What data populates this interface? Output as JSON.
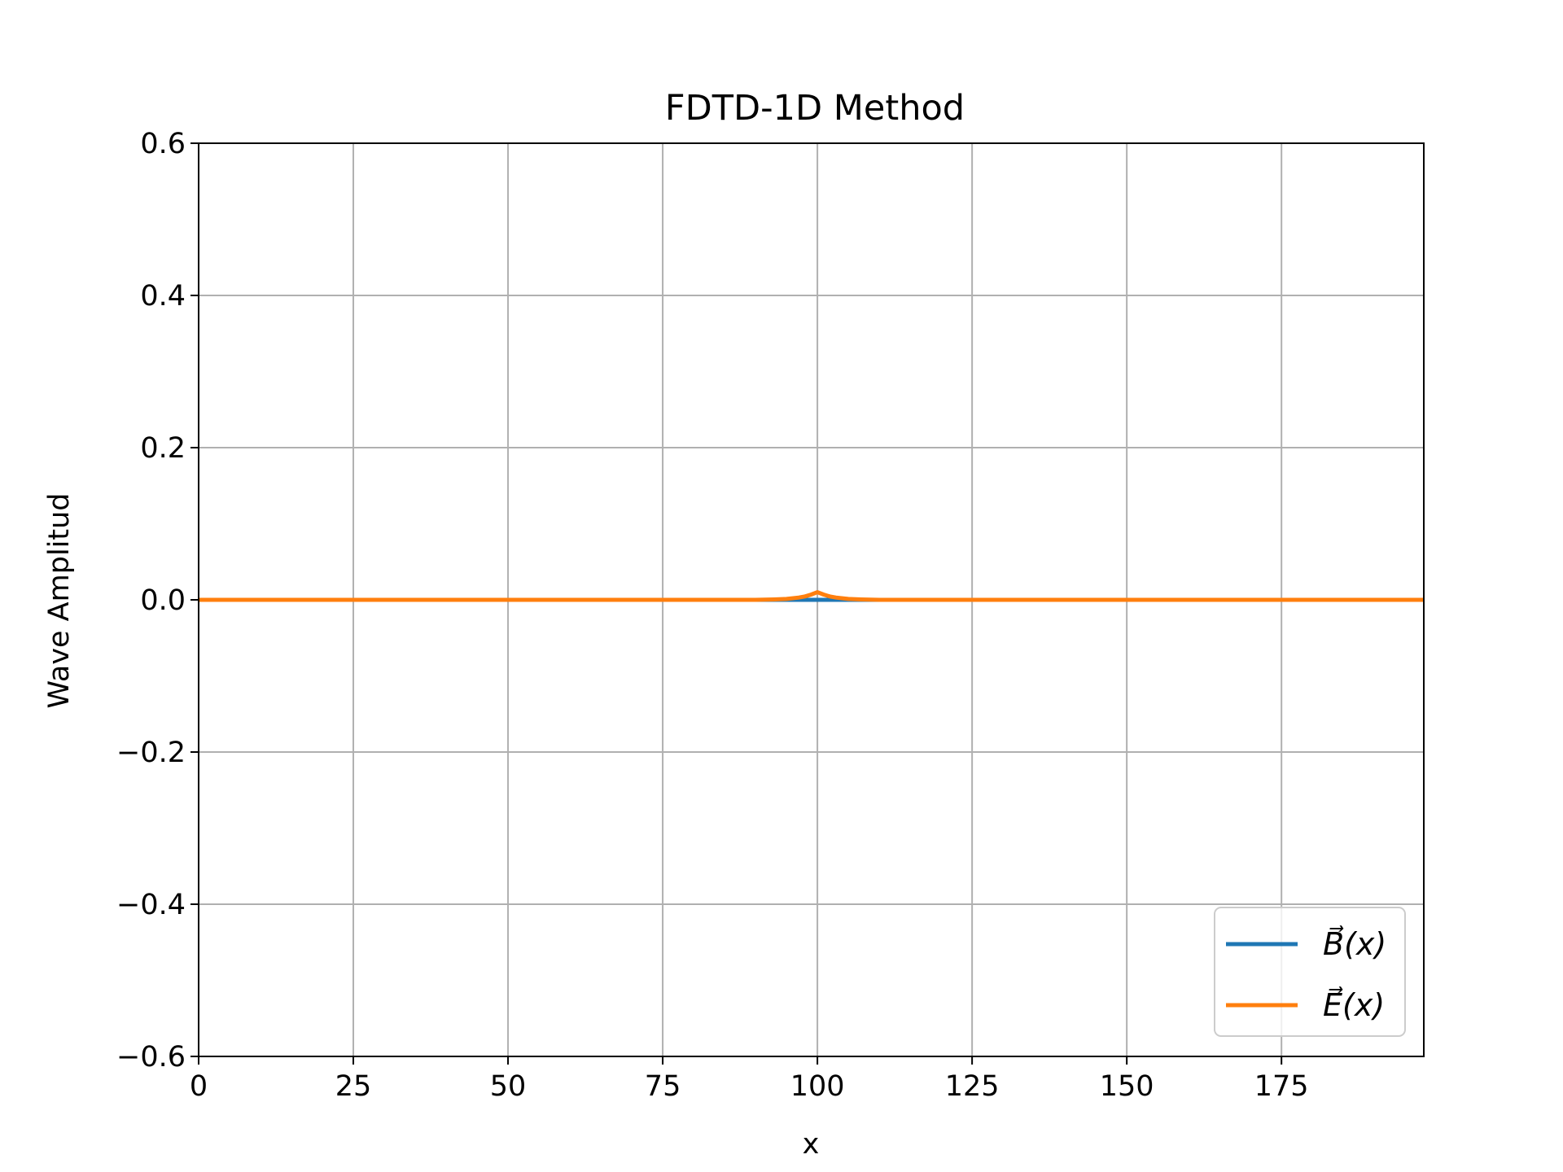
{
  "chart_data": {
    "type": "line",
    "title": "FDTD-1D Method",
    "xlabel": "x",
    "ylabel": "Wave Amplitud",
    "xlim": [
      0,
      198
    ],
    "ylim": [
      -0.6,
      0.6
    ],
    "xticks": [
      0,
      25,
      50,
      75,
      100,
      125,
      150,
      175
    ],
    "yticks": [
      -0.6,
      -0.4,
      -0.2,
      0.0,
      0.2,
      0.4,
      0.6
    ],
    "xtick_labels": [
      "0",
      "25",
      "50",
      "75",
      "100",
      "125",
      "150",
      "175"
    ],
    "ytick_labels": [
      "−0.6",
      "−0.4",
      "−0.2",
      "0.0",
      "0.2",
      "0.4",
      "0.6"
    ],
    "grid": true,
    "legend_position": "lower-right",
    "series": [
      {
        "name": "B⃗(x)",
        "color": "#1f77b4",
        "x": [
          0,
          50,
          90,
          95,
          98,
          99,
          100,
          101,
          102,
          105,
          110,
          150,
          198
        ],
        "y": [
          0,
          0,
          0,
          0,
          0,
          0,
          0,
          0,
          0,
          0,
          0,
          0,
          0
        ]
      },
      {
        "name": "E⃗(x)",
        "color": "#ff7f0e",
        "x": [
          0,
          50,
          90,
          93,
          95,
          97,
          98,
          99,
          100,
          101,
          102,
          103,
          105,
          107,
          110,
          150,
          198
        ],
        "y": [
          0,
          0,
          0,
          0.0005,
          0.0012,
          0.003,
          0.0045,
          0.007,
          0.01,
          0.007,
          0.0045,
          0.003,
          0.0012,
          0.0005,
          0,
          0,
          0
        ]
      }
    ]
  }
}
